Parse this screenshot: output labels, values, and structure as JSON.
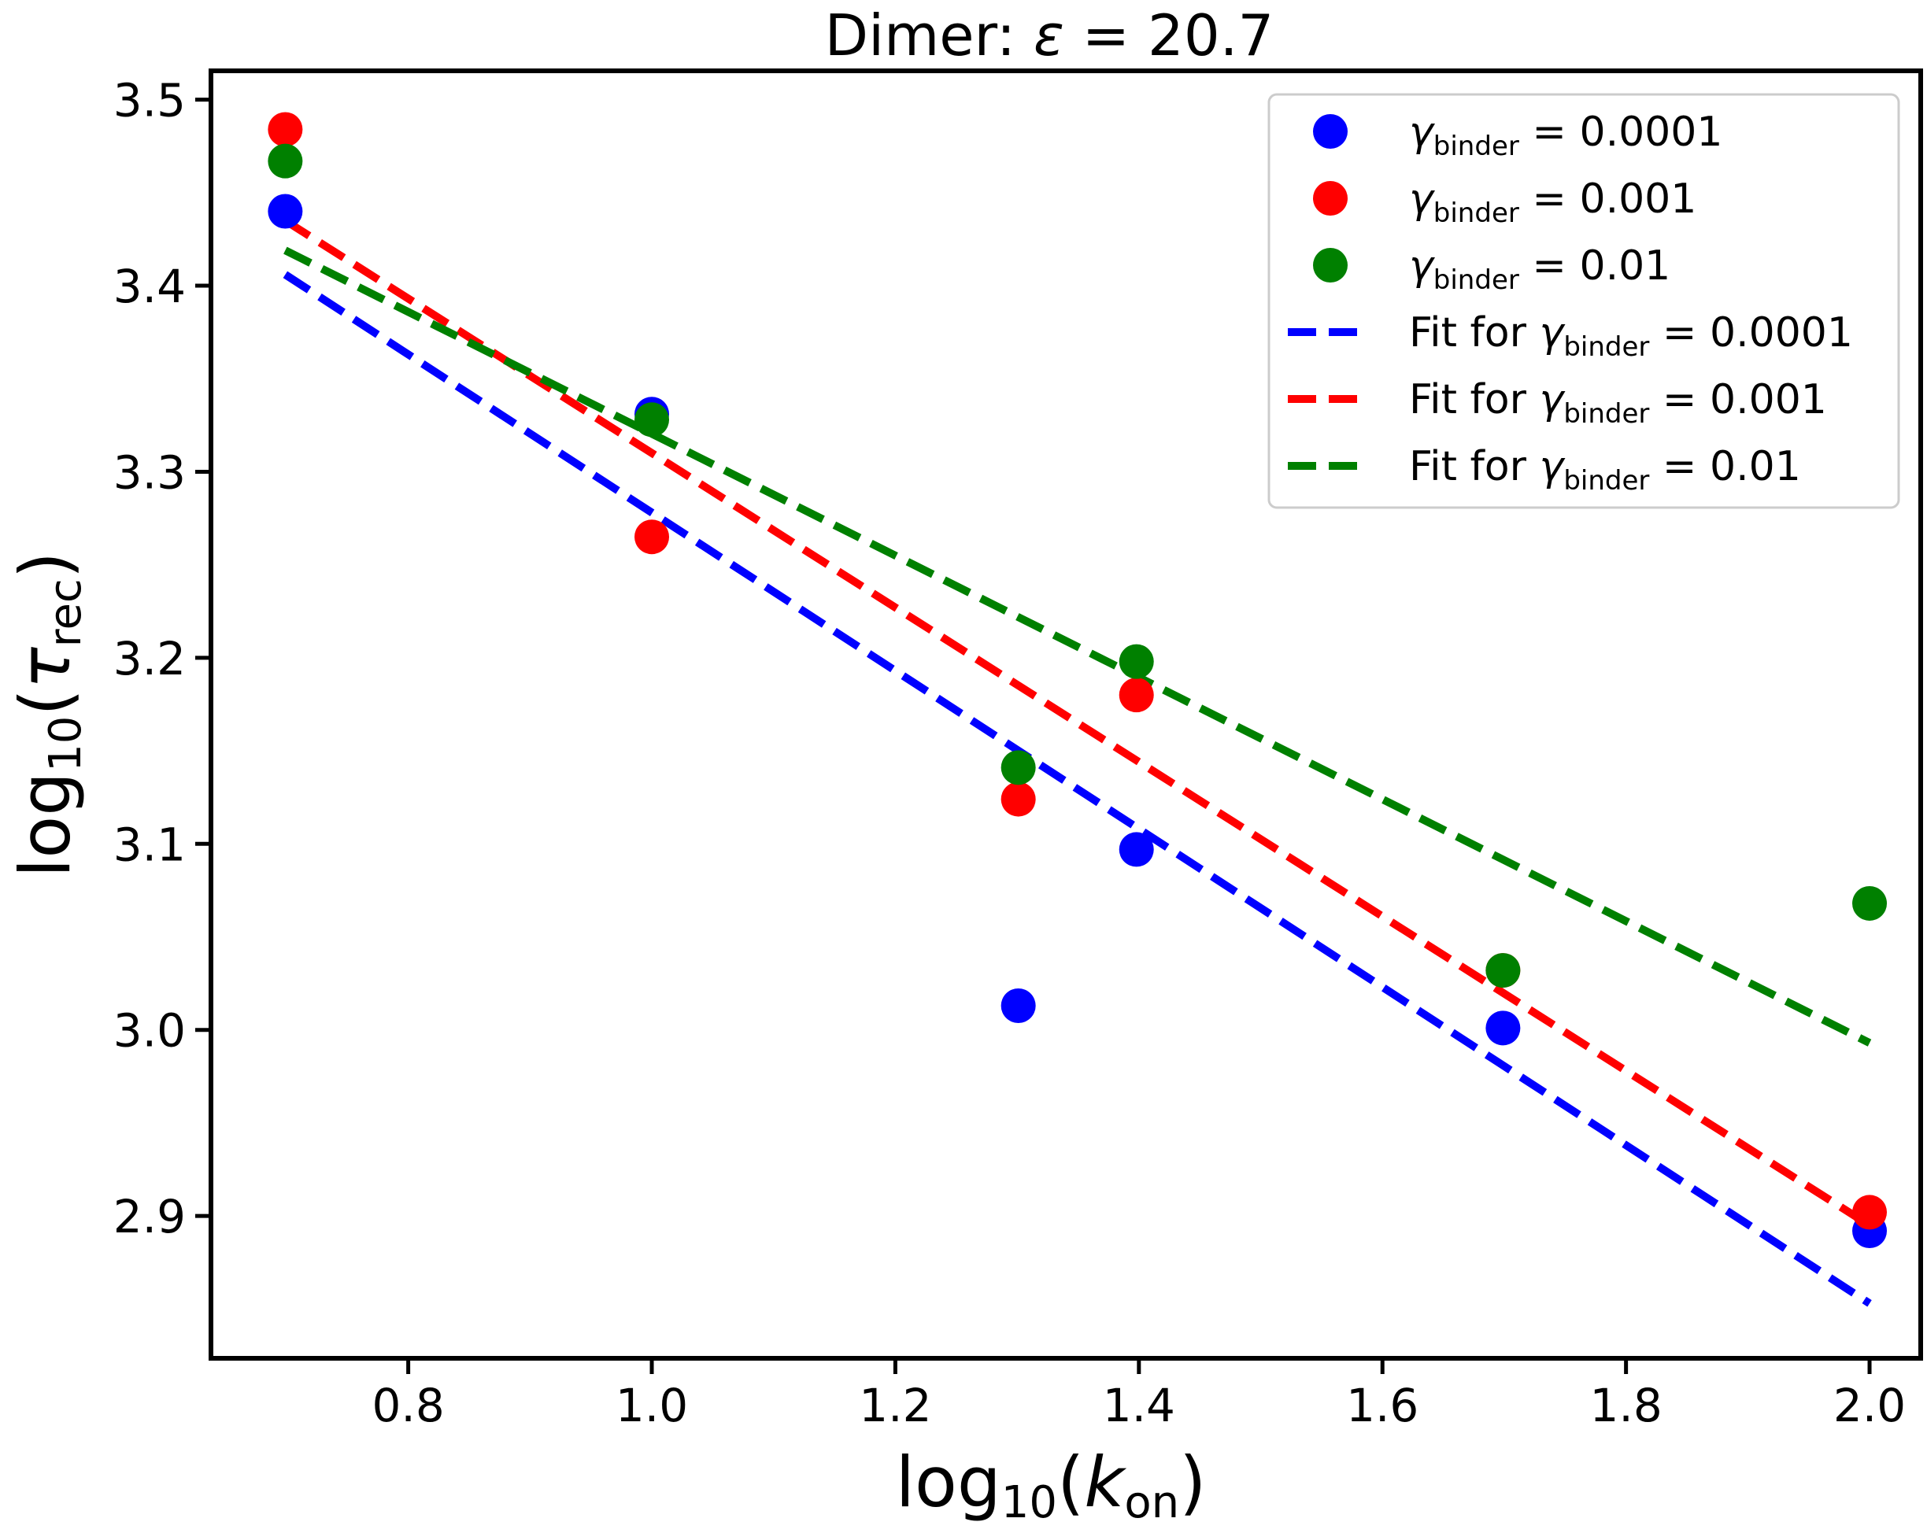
{
  "chart_data": {
    "type": "scatter",
    "title": {
      "prefix": "Dimer: ",
      "symbol": "ε",
      "equals": " = ",
      "value": "20.7"
    },
    "xlabel": {
      "func": "log",
      "func_sub": "10",
      "var": "k",
      "var_sub": "on"
    },
    "ylabel": {
      "func": "log",
      "func_sub": "10",
      "var": "τ",
      "var_sub": "rec"
    },
    "xlim": [
      0.638,
      2.042
    ],
    "ylim": [
      2.8235,
      3.5155
    ],
    "xticks": [
      0.8,
      1.0,
      1.2,
      1.4,
      1.6,
      1.8,
      2.0
    ],
    "xtick_labels": [
      "0.8",
      "1.0",
      "1.2",
      "1.4",
      "1.6",
      "1.8",
      "2.0"
    ],
    "yticks": [
      2.9,
      3.0,
      3.1,
      3.2,
      3.3,
      3.4,
      3.5
    ],
    "ytick_labels": [
      "2.9",
      "3.0",
      "3.1",
      "3.2",
      "3.3",
      "3.4",
      "3.5"
    ],
    "grid": false,
    "legend_position": "top-right",
    "legend_symbol": "γ",
    "legend_sub": "binder",
    "legend_fit_prefix": "Fit for ",
    "series": [
      {
        "key": "s1",
        "value_text": "0.0001",
        "color": "#0000ff",
        "points": [
          [
            0.699,
            3.44
          ],
          [
            1.0,
            3.331
          ],
          [
            1.301,
            3.013
          ],
          [
            1.398,
            3.097
          ],
          [
            1.699,
            3.001
          ],
          [
            2.0,
            2.892
          ]
        ],
        "fit": [
          [
            0.699,
            3.406
          ],
          [
            2.0,
            2.853
          ]
        ]
      },
      {
        "key": "s2",
        "value_text": "0.001",
        "color": "#ff0000",
        "points": [
          [
            0.699,
            3.484
          ],
          [
            1.0,
            3.265
          ],
          [
            1.301,
            3.124
          ],
          [
            1.398,
            3.18
          ],
          [
            1.699,
            3.032
          ],
          [
            2.0,
            2.902
          ]
        ],
        "fit": [
          [
            0.699,
            3.435
          ],
          [
            2.0,
            2.895
          ]
        ]
      },
      {
        "key": "s3",
        "value_text": "0.01",
        "color": "#008000",
        "points": [
          [
            0.699,
            3.467
          ],
          [
            1.0,
            3.328
          ],
          [
            1.301,
            3.141
          ],
          [
            1.398,
            3.198
          ],
          [
            1.699,
            3.032
          ],
          [
            2.0,
            3.068
          ]
        ],
        "fit": [
          [
            0.699,
            3.419
          ],
          [
            2.0,
            2.993
          ]
        ]
      }
    ]
  }
}
